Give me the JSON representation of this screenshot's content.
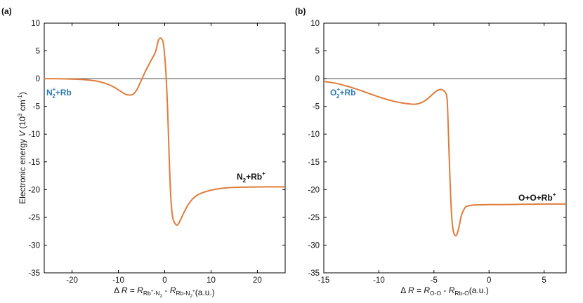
{
  "chart_data": [
    {
      "type": "line",
      "panel": "(a)",
      "xlabel": {
        "delta": "Δ",
        "var": "R",
        "eq": " = ",
        "r1": "R",
        "r1_sub_a": "Rb",
        "r1_sub_sup": "+",
        "r1_sub_b": "-N",
        "r1_sub_c": "2",
        "minus": " - ",
        "r2": "R",
        "r2_sub_a": "Rb-N",
        "r2_sub_b": "2",
        "r2_sub_sup": "+",
        "unit": "(a.u.)"
      },
      "ylabel": {
        "text": "Electronic energy ",
        "var": "V",
        "unit_a": " (10",
        "unit_exp": "3",
        "unit_b": " cm",
        "unit_exp2": "-1",
        "unit_c": ")"
      },
      "xlim": [
        -26,
        26
      ],
      "ylim": [
        -35,
        10
      ],
      "xticks": [
        -20,
        -10,
        0,
        10,
        20
      ],
      "yticks": [
        -35,
        -30,
        -25,
        -20,
        -15,
        -10,
        -5,
        0,
        5,
        10
      ],
      "annotations": [
        {
          "base": "N",
          "sub": "2",
          "sup": "+",
          "rest": "+Rb",
          "color": "#2e7bb0"
        },
        {
          "base": "N",
          "sub": "2",
          "rest": "+Rb",
          "sup2": "+",
          "color": "#111111"
        }
      ],
      "series": [
        {
          "name": "V",
          "color": "#e07c3a",
          "x": [
            -26,
            -22,
            -18,
            -15,
            -13,
            -11,
            -9.5,
            -8.5,
            -7.5,
            -6.8,
            -6,
            -5,
            -4,
            -3,
            -2,
            -1.4,
            -1,
            -0.6,
            -0.3,
            0,
            0.3,
            0.6,
            0.8,
            1,
            1.2,
            1.4,
            1.6,
            1.8,
            2,
            2.3,
            2.6,
            3,
            3.5,
            4,
            5,
            6,
            7,
            8,
            10,
            12,
            15,
            18,
            22,
            26
          ],
          "y": [
            0,
            -0.03,
            -0.15,
            -0.4,
            -0.8,
            -1.5,
            -2.3,
            -2.8,
            -2.95,
            -2.8,
            -2.0,
            -0.2,
            1.6,
            3.2,
            4.8,
            6.8,
            7.3,
            7.1,
            6.4,
            4.0,
            0.5,
            -5,
            -10,
            -15,
            -19.5,
            -22.5,
            -24.3,
            -25.3,
            -25.8,
            -26.2,
            -26.4,
            -26.1,
            -25.3,
            -24.4,
            -22.8,
            -21.7,
            -21,
            -20.6,
            -20.1,
            -19.8,
            -19.6,
            -19.55,
            -19.5,
            -19.5
          ]
        }
      ]
    },
    {
      "type": "line",
      "panel": "(b)",
      "xlabel": {
        "delta": "Δ",
        "var": "R",
        "eq": " = ",
        "r1": "R",
        "r1_sub": "O-O",
        "minus": " - ",
        "r2": "R",
        "r2_sub": "Rb-O",
        "unit": "(a.u.)"
      },
      "xlim": [
        -15,
        7
      ],
      "ylim": [
        -35,
        10
      ],
      "xticks": [
        -15,
        -10,
        -5,
        0,
        5
      ],
      "yticks": [
        -35,
        -30,
        -25,
        -20,
        -15,
        -10,
        -5,
        0,
        5,
        10
      ],
      "annotations": [
        {
          "base": "O",
          "sub": "2",
          "sup": "+",
          "rest": "+Rb",
          "color": "#2e7bb0"
        },
        {
          "base": "O+O+Rb",
          "sup2": "+",
          "color": "#111111"
        }
      ],
      "series": [
        {
          "name": "V",
          "color": "#e07c3a",
          "x": [
            -15,
            -14,
            -13,
            -12,
            -11,
            -10,
            -9,
            -8,
            -7,
            -6.5,
            -6,
            -5.5,
            -5,
            -4.6,
            -4.3,
            -4.1,
            -3.9,
            -3.8,
            -3.75,
            -3.7,
            -3.6,
            -3.5,
            -3.4,
            -3.3,
            -3.2,
            -3.1,
            -3,
            -2.9,
            -2.7,
            -2.5,
            -2.2,
            -2,
            -1.5,
            -1,
            0,
            1,
            3,
            5,
            7
          ],
          "y": [
            -0.5,
            -0.8,
            -1.3,
            -1.9,
            -2.6,
            -3.3,
            -3.9,
            -4.35,
            -4.6,
            -4.55,
            -4.2,
            -3.5,
            -2.6,
            -2.05,
            -1.95,
            -2.2,
            -2.7,
            -3.8,
            -6,
            -9,
            -15,
            -20.5,
            -24.5,
            -26.8,
            -27.8,
            -28.2,
            -28.3,
            -28,
            -26.5,
            -24.6,
            -23.3,
            -23,
            -22.8,
            -22.75,
            -22.7,
            -22.7,
            -22.65,
            -22.6,
            -22.6
          ]
        }
      ]
    }
  ]
}
